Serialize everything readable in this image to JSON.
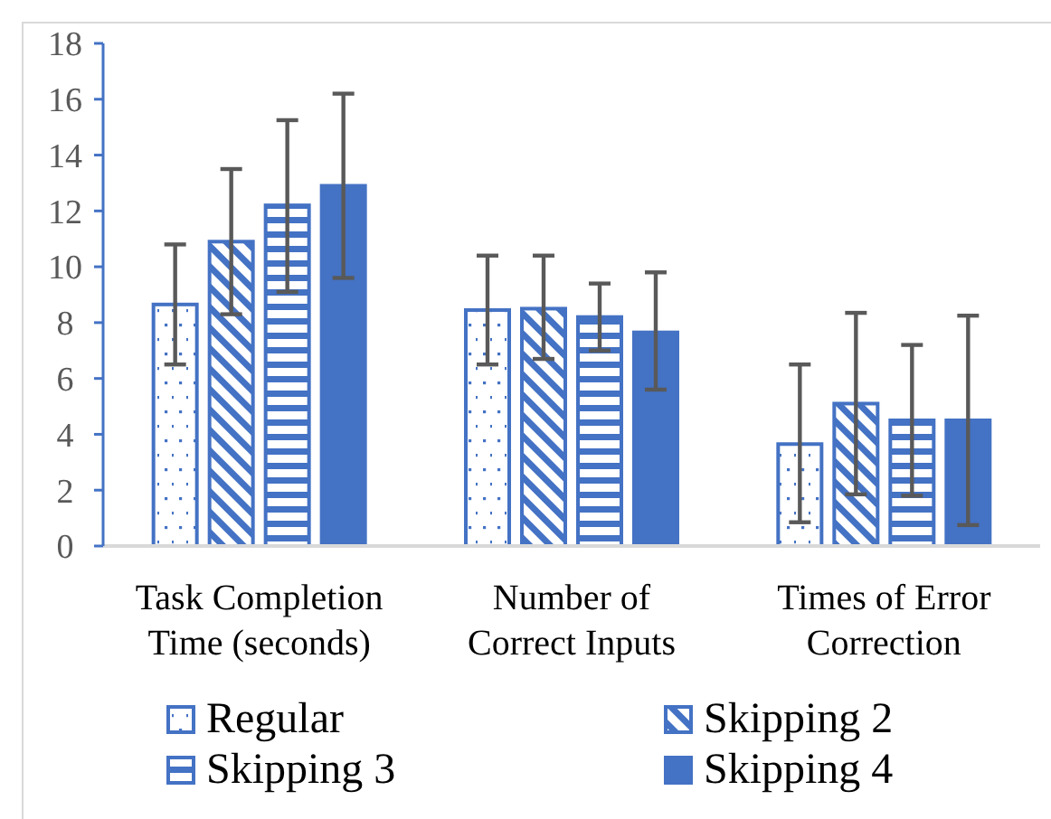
{
  "chart_data": {
    "type": "bar",
    "categories": [
      "Task Completion Time (seconds)",
      "Number of Correct Inputs",
      "Times of Error Correction"
    ],
    "ylim": [
      0,
      18
    ],
    "yticks": [
      0,
      2,
      4,
      6,
      8,
      10,
      12,
      14,
      16,
      18
    ],
    "grid": false,
    "legend": "bottom",
    "series": [
      {
        "name": "Regular",
        "color": "#4472c4",
        "values": [
          8.65,
          8.45,
          3.65
        ],
        "errors": [
          [
            6.5,
            10.8
          ],
          [
            6.5,
            10.4
          ],
          [
            0.85,
            6.5
          ]
        ]
      },
      {
        "name": "Skipping 2",
        "color": "#4472c4",
        "values": [
          10.9,
          8.5,
          5.1
        ],
        "errors": [
          [
            8.3,
            13.5
          ],
          [
            6.7,
            10.4
          ],
          [
            1.85,
            8.35
          ]
        ]
      },
      {
        "name": "Skipping 3",
        "color": "#4472c4",
        "values": [
          12.2,
          8.2,
          4.5
        ],
        "errors": [
          [
            9.1,
            15.25
          ],
          [
            7.0,
            9.4
          ],
          [
            1.8,
            7.2
          ]
        ]
      },
      {
        "name": "Skipping 4",
        "color": "#4472c4",
        "values": [
          12.9,
          7.65,
          4.5
        ],
        "errors": [
          [
            9.6,
            16.2
          ],
          [
            5.6,
            9.8
          ],
          [
            0.75,
            8.25
          ]
        ]
      }
    ]
  }
}
